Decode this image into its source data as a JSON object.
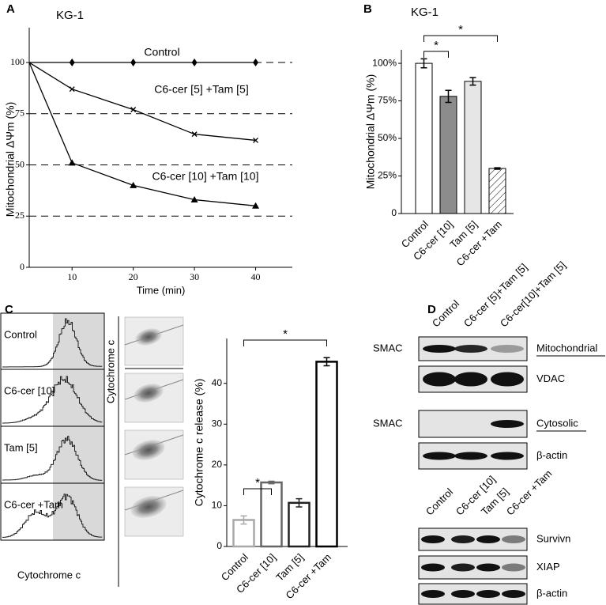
{
  "panel_labels": [
    "A",
    "B",
    "C",
    "D"
  ],
  "chart_data": [
    {
      "type": "line",
      "title": "KG-1",
      "x_label": "Time (min)",
      "y_label": "Mitochondrial ΔΨm  (%)",
      "x": [
        3,
        10,
        20,
        30,
        40
      ],
      "series": [
        {
          "name": "Control",
          "color": "#000000",
          "marker": "diamond",
          "values": [
            100,
            100,
            100,
            100,
            100
          ]
        },
        {
          "name": "C6-cer [5] +Tam  [5]",
          "color": "#000000",
          "marker": "cross",
          "values": [
            100,
            87,
            77,
            65,
            62
          ]
        },
        {
          "name": "C6-cer [10] +Tam  [10]",
          "color": "#000000",
          "marker": "triangle",
          "values": [
            100,
            51,
            40,
            33,
            30
          ]
        }
      ],
      "xlim": [
        3,
        46
      ],
      "ylim": [
        0,
        117
      ],
      "xticks": [
        10,
        20,
        30,
        40
      ],
      "yticks": [
        0,
        25,
        50,
        75,
        100
      ],
      "reference_lines": [
        100,
        75,
        50,
        25
      ]
    },
    {
      "type": "bar",
      "title": "KG-1",
      "y_label": "Mitochondrial ΔΨm (%)",
      "categories": [
        "Control",
        "C6-cer [10]",
        "Tam [5]",
        "C6-cer +Tam"
      ],
      "values": [
        100,
        78,
        88,
        30
      ],
      "errors": [
        3,
        4,
        2.5,
        0.5
      ],
      "colors": [
        "#ffffff",
        "#8c8c8c",
        "#e6e6e6",
        "#ffffff"
      ],
      "hatch": [
        false,
        false,
        false,
        true
      ],
      "outline": false,
      "ylim": [
        0,
        109
      ],
      "yticks": [
        0,
        {
          "value": 25,
          "label": "25%"
        },
        {
          "value": 50,
          "label": "50%"
        },
        {
          "value": 75,
          "label": "75%"
        },
        {
          "value": 100,
          "label": "100%"
        }
      ],
      "annotations": [
        "*",
        "*"
      ]
    },
    {
      "type": "bar",
      "y_label": "Cytochrome c release (%)",
      "categories": [
        "Control",
        "C6-cer [10]",
        "Tam [5]",
        "C6-cer +Tam"
      ],
      "values": [
        6.5,
        15.7,
        10.7,
        45.3
      ],
      "errors": [
        1,
        0.3,
        1,
        1
      ],
      "colors": [
        "#a8a8a8",
        "#666666",
        "#222222",
        "#000000"
      ],
      "hatch": [
        false,
        false,
        false,
        false
      ],
      "outline": true,
      "ylim": [
        0,
        51
      ],
      "yticks": [
        0,
        10,
        20,
        30,
        40
      ],
      "annotations": [
        "*",
        "*"
      ]
    }
  ],
  "flow": {
    "rows": [
      "Control",
      "C6-cer [10]",
      "Tam [5]",
      "C6-cer +Tam"
    ],
    "x_label": "Cytochrome c",
    "dot_plot_label": "Cytochrome c"
  },
  "blots": {
    "mitochondrial_cytosolic": {
      "lanes": [
        "Control",
        "C6-cer [5]+Tam [5]",
        "C6-cer[10]+Tam [5]"
      ],
      "rows": [
        {
          "left": "SMAC",
          "right": "Mitochondrial"
        },
        {
          "right": "VDAC"
        },
        {
          "left": "SMAC",
          "right": "Cytosolic"
        },
        {
          "right": "β-actin"
        }
      ]
    },
    "iap": {
      "lanes": [
        "Control",
        "C6-cer [10]",
        "Tam [5]",
        "C6-cer +Tam"
      ],
      "rows": [
        "Survivn",
        "XIAP",
        "β-actin"
      ]
    }
  }
}
